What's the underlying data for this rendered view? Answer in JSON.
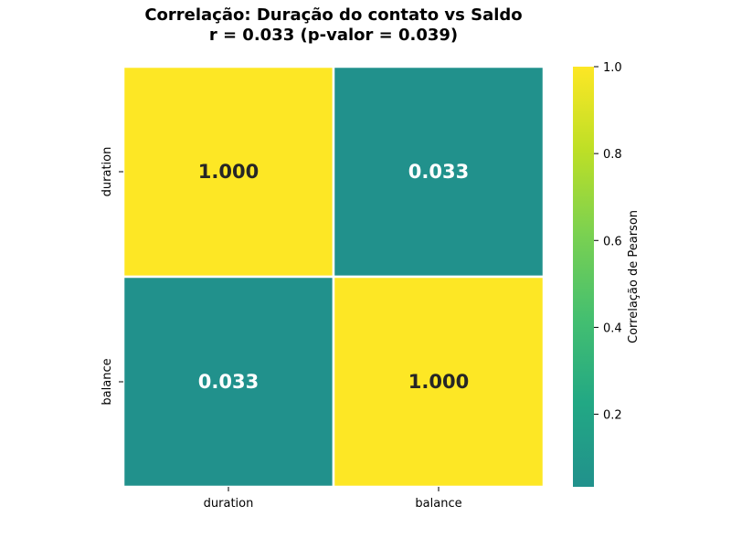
{
  "chart_data": {
    "type": "heatmap",
    "title_line1": "Correlação: Duração do contato vs Saldo",
    "title_line2": "r = 0.033 (p-valor = 0.039)",
    "x_categories": [
      "duration",
      "balance"
    ],
    "y_categories": [
      "duration",
      "balance"
    ],
    "values": [
      [
        1.0,
        0.033
      ],
      [
        0.033,
        1.0
      ]
    ],
    "cell_labels": [
      [
        "1.000",
        "0.033"
      ],
      [
        "0.033",
        "1.000"
      ]
    ],
    "colorbar": {
      "label": "Correlação de Pearson",
      "range": [
        0.033,
        1.0
      ],
      "ticks": [
        0.2,
        0.4,
        0.6,
        0.8,
        1.0
      ],
      "tick_labels": [
        "0.2",
        "0.4",
        "0.6",
        "0.8",
        "1.0"
      ]
    },
    "colormap": {
      "low": "#21918c",
      "high": "#fde725",
      "stops": [
        "#21918c",
        "#22a884",
        "#44bf70",
        "#7ad151",
        "#bddf26",
        "#fde725"
      ]
    },
    "text_color_dark": "#262626",
    "text_color_light": "#ffffff",
    "cell_border_color": "#ffffff"
  }
}
